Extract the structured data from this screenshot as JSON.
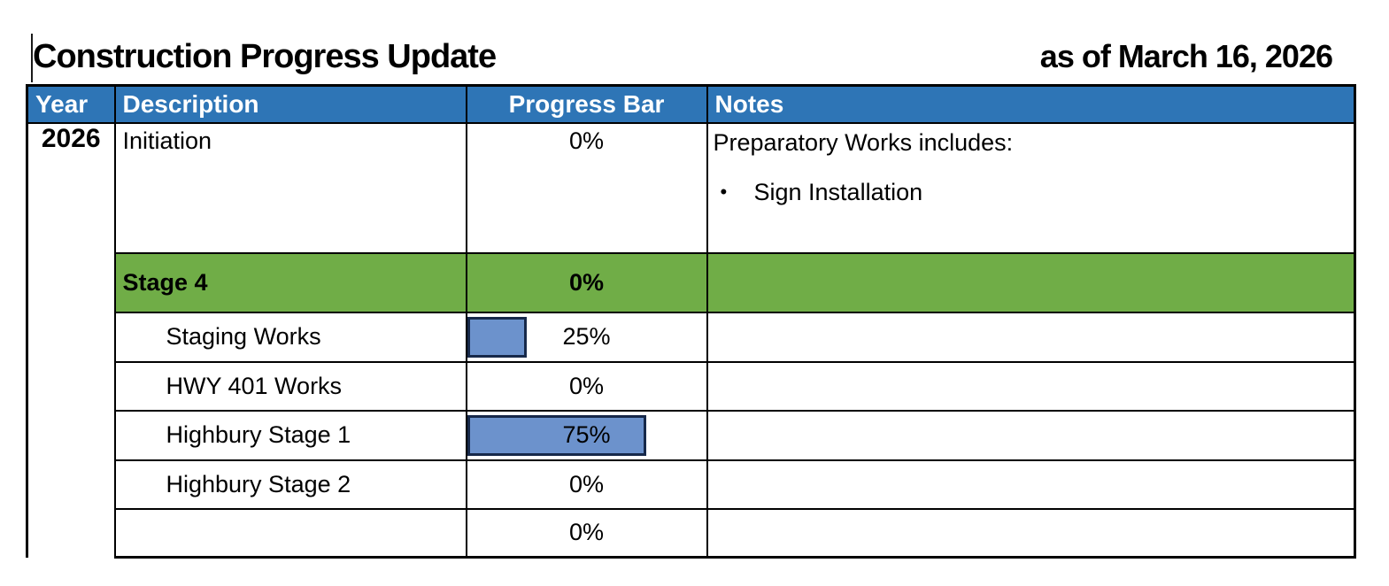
{
  "title": "Construction Progress Update",
  "as_of_date": "as of March 16, 2026",
  "colors": {
    "header_bg": "#2E75B6",
    "stage_row_bg": "#70AD47",
    "bar_fill": "#6C92CC",
    "bar_border": "#17294A",
    "grid": "#000000"
  },
  "table": {
    "headers": {
      "year": "Year",
      "description": "Description",
      "progress": "Progress Bar",
      "notes": "Notes"
    },
    "year_label": "2026",
    "rows": [
      {
        "description": "Initiation",
        "progress_percent": 0,
        "progress_label": "0%",
        "notes_heading": "Preparatory Works includes:",
        "bullet_char": "•",
        "bullet_text": "Sign Installation"
      },
      {
        "description": "Stage 4",
        "progress_percent": 0,
        "progress_label": "0%"
      },
      {
        "description": "Staging Works",
        "progress_percent": 25,
        "progress_label": "25%"
      },
      {
        "description": "HWY 401 Works",
        "progress_percent": 0,
        "progress_label": "0%"
      },
      {
        "description": "Highbury Stage 1",
        "progress_percent": 75,
        "progress_label": "75%"
      },
      {
        "description": "Highbury Stage 2",
        "progress_percent": 0,
        "progress_label": "0%"
      },
      {
        "description": "",
        "progress_percent": 0,
        "progress_label": "0%"
      }
    ]
  }
}
